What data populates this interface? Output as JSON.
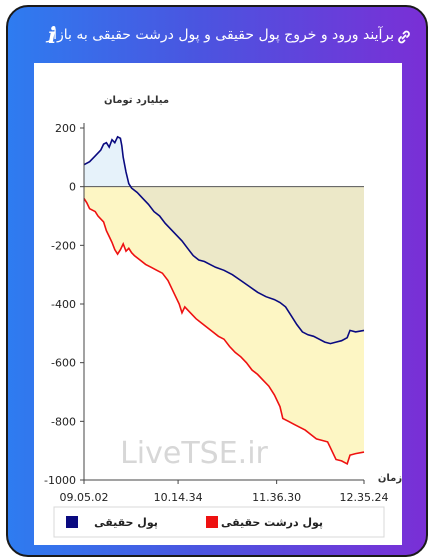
{
  "header": {
    "title": "برآیند ورود و خروج پول حقیقی و پول درشت حقیقی به بازار",
    "info_icon": "info-icon",
    "link_icon": "link-icon"
  },
  "chart_data": {
    "type": "line",
    "ylabel": "میلیارد تومان",
    "xlabel": "زمان",
    "ylim": [
      -1000,
      200
    ],
    "yticks": [
      200,
      0,
      -200,
      -400,
      -600,
      -800,
      -1000
    ],
    "xlim": [
      0,
      1
    ],
    "xticks": [
      {
        "t": 0.0,
        "label": "09.05.02"
      },
      {
        "t": 0.336,
        "label": "10.14.34"
      },
      {
        "t": 0.688,
        "label": "11.36.30"
      },
      {
        "t": 1.0,
        "label": "12.35.24"
      }
    ],
    "watermark": "LiveTSE.ir",
    "legend_position": "bottom",
    "series": [
      {
        "name": "پول حقیقی",
        "color": "#0a0a80",
        "area_above_zero": "#e6f2fa",
        "area_below_zero": "#ece8c8",
        "points": [
          [
            0.0,
            75
          ],
          [
            0.02,
            85
          ],
          [
            0.04,
            105
          ],
          [
            0.06,
            125
          ],
          [
            0.07,
            145
          ],
          [
            0.08,
            150
          ],
          [
            0.09,
            135
          ],
          [
            0.1,
            160
          ],
          [
            0.11,
            150
          ],
          [
            0.12,
            170
          ],
          [
            0.13,
            165
          ],
          [
            0.135,
            140
          ],
          [
            0.14,
            100
          ],
          [
            0.15,
            50
          ],
          [
            0.16,
            10
          ],
          [
            0.17,
            -5
          ],
          [
            0.19,
            -20
          ],
          [
            0.21,
            -40
          ],
          [
            0.23,
            -60
          ],
          [
            0.25,
            -85
          ],
          [
            0.27,
            -100
          ],
          [
            0.29,
            -125
          ],
          [
            0.31,
            -145
          ],
          [
            0.33,
            -165
          ],
          [
            0.35,
            -185
          ],
          [
            0.37,
            -210
          ],
          [
            0.39,
            -235
          ],
          [
            0.41,
            -250
          ],
          [
            0.43,
            -255
          ],
          [
            0.45,
            -265
          ],
          [
            0.47,
            -275
          ],
          [
            0.5,
            -285
          ],
          [
            0.53,
            -300
          ],
          [
            0.56,
            -320
          ],
          [
            0.59,
            -340
          ],
          [
            0.62,
            -360
          ],
          [
            0.65,
            -375
          ],
          [
            0.68,
            -385
          ],
          [
            0.7,
            -395
          ],
          [
            0.72,
            -410
          ],
          [
            0.74,
            -440
          ],
          [
            0.76,
            -470
          ],
          [
            0.78,
            -495
          ],
          [
            0.8,
            -505
          ],
          [
            0.82,
            -510
          ],
          [
            0.84,
            -520
          ],
          [
            0.86,
            -530
          ],
          [
            0.88,
            -535
          ],
          [
            0.9,
            -530
          ],
          [
            0.92,
            -525
          ],
          [
            0.94,
            -515
          ],
          [
            0.95,
            -490
          ],
          [
            0.97,
            -495
          ],
          [
            1.0,
            -490
          ]
        ]
      },
      {
        "name": "پول درشت حقیقی",
        "color": "#ee1111",
        "area_color": "#fdf6c4",
        "points": [
          [
            0.0,
            -40
          ],
          [
            0.01,
            -55
          ],
          [
            0.02,
            -75
          ],
          [
            0.04,
            -85
          ],
          [
            0.05,
            -100
          ],
          [
            0.07,
            -120
          ],
          [
            0.08,
            -150
          ],
          [
            0.09,
            -170
          ],
          [
            0.1,
            -190
          ],
          [
            0.11,
            -215
          ],
          [
            0.12,
            -230
          ],
          [
            0.13,
            -215
          ],
          [
            0.14,
            -195
          ],
          [
            0.15,
            -220
          ],
          [
            0.16,
            -210
          ],
          [
            0.17,
            -225
          ],
          [
            0.18,
            -235
          ],
          [
            0.2,
            -250
          ],
          [
            0.22,
            -265
          ],
          [
            0.24,
            -275
          ],
          [
            0.26,
            -285
          ],
          [
            0.28,
            -295
          ],
          [
            0.3,
            -320
          ],
          [
            0.32,
            -360
          ],
          [
            0.34,
            -400
          ],
          [
            0.35,
            -430
          ],
          [
            0.36,
            -410
          ],
          [
            0.38,
            -430
          ],
          [
            0.4,
            -450
          ],
          [
            0.42,
            -465
          ],
          [
            0.44,
            -480
          ],
          [
            0.46,
            -495
          ],
          [
            0.48,
            -510
          ],
          [
            0.5,
            -520
          ],
          [
            0.52,
            -545
          ],
          [
            0.54,
            -565
          ],
          [
            0.56,
            -580
          ],
          [
            0.58,
            -600
          ],
          [
            0.6,
            -625
          ],
          [
            0.62,
            -640
          ],
          [
            0.64,
            -660
          ],
          [
            0.66,
            -680
          ],
          [
            0.68,
            -710
          ],
          [
            0.7,
            -750
          ],
          [
            0.71,
            -790
          ],
          [
            0.73,
            -800
          ],
          [
            0.75,
            -810
          ],
          [
            0.77,
            -820
          ],
          [
            0.79,
            -830
          ],
          [
            0.81,
            -845
          ],
          [
            0.83,
            -860
          ],
          [
            0.85,
            -865
          ],
          [
            0.87,
            -870
          ],
          [
            0.88,
            -890
          ],
          [
            0.9,
            -930
          ],
          [
            0.92,
            -935
          ],
          [
            0.94,
            -945
          ],
          [
            0.95,
            -915
          ],
          [
            0.97,
            -910
          ],
          [
            1.0,
            -905
          ]
        ]
      }
    ]
  }
}
